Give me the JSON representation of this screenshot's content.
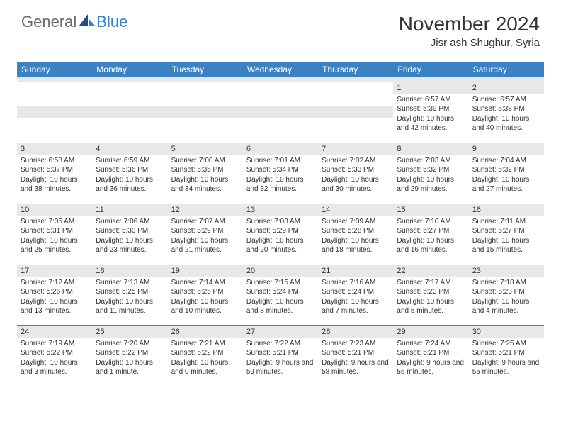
{
  "logo": {
    "textGeneral": "General",
    "textBlue": "Blue"
  },
  "title": "November 2024",
  "location": "Jisr ash Shughur, Syria",
  "dayHeaders": [
    "Sunday",
    "Monday",
    "Tuesday",
    "Wednesday",
    "Thursday",
    "Friday",
    "Saturday"
  ],
  "colors": {
    "headerBg": "#3b82c4",
    "spacerBg": "#e8e8e8",
    "dayNumBg": "#e8e8e8",
    "text": "#333333",
    "logoGray": "#6b6b6b",
    "logoBlue": "#3b82c4",
    "border": "#3b82c4",
    "background": "#ffffff"
  },
  "weeks": [
    [
      {
        "n": "",
        "sunrise": "",
        "sunset": "",
        "daylight": ""
      },
      {
        "n": "",
        "sunrise": "",
        "sunset": "",
        "daylight": ""
      },
      {
        "n": "",
        "sunrise": "",
        "sunset": "",
        "daylight": ""
      },
      {
        "n": "",
        "sunrise": "",
        "sunset": "",
        "daylight": ""
      },
      {
        "n": "",
        "sunrise": "",
        "sunset": "",
        "daylight": ""
      },
      {
        "n": "1",
        "sunrise": "Sunrise: 6:57 AM",
        "sunset": "Sunset: 5:39 PM",
        "daylight": "Daylight: 10 hours and 42 minutes."
      },
      {
        "n": "2",
        "sunrise": "Sunrise: 6:57 AM",
        "sunset": "Sunset: 5:38 PM",
        "daylight": "Daylight: 10 hours and 40 minutes."
      }
    ],
    [
      {
        "n": "3",
        "sunrise": "Sunrise: 6:58 AM",
        "sunset": "Sunset: 5:37 PM",
        "daylight": "Daylight: 10 hours and 38 minutes."
      },
      {
        "n": "4",
        "sunrise": "Sunrise: 6:59 AM",
        "sunset": "Sunset: 5:36 PM",
        "daylight": "Daylight: 10 hours and 36 minutes."
      },
      {
        "n": "5",
        "sunrise": "Sunrise: 7:00 AM",
        "sunset": "Sunset: 5:35 PM",
        "daylight": "Daylight: 10 hours and 34 minutes."
      },
      {
        "n": "6",
        "sunrise": "Sunrise: 7:01 AM",
        "sunset": "Sunset: 5:34 PM",
        "daylight": "Daylight: 10 hours and 32 minutes."
      },
      {
        "n": "7",
        "sunrise": "Sunrise: 7:02 AM",
        "sunset": "Sunset: 5:33 PM",
        "daylight": "Daylight: 10 hours and 30 minutes."
      },
      {
        "n": "8",
        "sunrise": "Sunrise: 7:03 AM",
        "sunset": "Sunset: 5:32 PM",
        "daylight": "Daylight: 10 hours and 29 minutes."
      },
      {
        "n": "9",
        "sunrise": "Sunrise: 7:04 AM",
        "sunset": "Sunset: 5:32 PM",
        "daylight": "Daylight: 10 hours and 27 minutes."
      }
    ],
    [
      {
        "n": "10",
        "sunrise": "Sunrise: 7:05 AM",
        "sunset": "Sunset: 5:31 PM",
        "daylight": "Daylight: 10 hours and 25 minutes."
      },
      {
        "n": "11",
        "sunrise": "Sunrise: 7:06 AM",
        "sunset": "Sunset: 5:30 PM",
        "daylight": "Daylight: 10 hours and 23 minutes."
      },
      {
        "n": "12",
        "sunrise": "Sunrise: 7:07 AM",
        "sunset": "Sunset: 5:29 PM",
        "daylight": "Daylight: 10 hours and 21 minutes."
      },
      {
        "n": "13",
        "sunrise": "Sunrise: 7:08 AM",
        "sunset": "Sunset: 5:29 PM",
        "daylight": "Daylight: 10 hours and 20 minutes."
      },
      {
        "n": "14",
        "sunrise": "Sunrise: 7:09 AM",
        "sunset": "Sunset: 5:28 PM",
        "daylight": "Daylight: 10 hours and 18 minutes."
      },
      {
        "n": "15",
        "sunrise": "Sunrise: 7:10 AM",
        "sunset": "Sunset: 5:27 PM",
        "daylight": "Daylight: 10 hours and 16 minutes."
      },
      {
        "n": "16",
        "sunrise": "Sunrise: 7:11 AM",
        "sunset": "Sunset: 5:27 PM",
        "daylight": "Daylight: 10 hours and 15 minutes."
      }
    ],
    [
      {
        "n": "17",
        "sunrise": "Sunrise: 7:12 AM",
        "sunset": "Sunset: 5:26 PM",
        "daylight": "Daylight: 10 hours and 13 minutes."
      },
      {
        "n": "18",
        "sunrise": "Sunrise: 7:13 AM",
        "sunset": "Sunset: 5:25 PM",
        "daylight": "Daylight: 10 hours and 11 minutes."
      },
      {
        "n": "19",
        "sunrise": "Sunrise: 7:14 AM",
        "sunset": "Sunset: 5:25 PM",
        "daylight": "Daylight: 10 hours and 10 minutes."
      },
      {
        "n": "20",
        "sunrise": "Sunrise: 7:15 AM",
        "sunset": "Sunset: 5:24 PM",
        "daylight": "Daylight: 10 hours and 8 minutes."
      },
      {
        "n": "21",
        "sunrise": "Sunrise: 7:16 AM",
        "sunset": "Sunset: 5:24 PM",
        "daylight": "Daylight: 10 hours and 7 minutes."
      },
      {
        "n": "22",
        "sunrise": "Sunrise: 7:17 AM",
        "sunset": "Sunset: 5:23 PM",
        "daylight": "Daylight: 10 hours and 5 minutes."
      },
      {
        "n": "23",
        "sunrise": "Sunrise: 7:18 AM",
        "sunset": "Sunset: 5:23 PM",
        "daylight": "Daylight: 10 hours and 4 minutes."
      }
    ],
    [
      {
        "n": "24",
        "sunrise": "Sunrise: 7:19 AM",
        "sunset": "Sunset: 5:22 PM",
        "daylight": "Daylight: 10 hours and 3 minutes."
      },
      {
        "n": "25",
        "sunrise": "Sunrise: 7:20 AM",
        "sunset": "Sunset: 5:22 PM",
        "daylight": "Daylight: 10 hours and 1 minute."
      },
      {
        "n": "26",
        "sunrise": "Sunrise: 7:21 AM",
        "sunset": "Sunset: 5:22 PM",
        "daylight": "Daylight: 10 hours and 0 minutes."
      },
      {
        "n": "27",
        "sunrise": "Sunrise: 7:22 AM",
        "sunset": "Sunset: 5:21 PM",
        "daylight": "Daylight: 9 hours and 59 minutes."
      },
      {
        "n": "28",
        "sunrise": "Sunrise: 7:23 AM",
        "sunset": "Sunset: 5:21 PM",
        "daylight": "Daylight: 9 hours and 58 minutes."
      },
      {
        "n": "29",
        "sunrise": "Sunrise: 7:24 AM",
        "sunset": "Sunset: 5:21 PM",
        "daylight": "Daylight: 9 hours and 56 minutes."
      },
      {
        "n": "30",
        "sunrise": "Sunrise: 7:25 AM",
        "sunset": "Sunset: 5:21 PM",
        "daylight": "Daylight: 9 hours and 55 minutes."
      }
    ]
  ]
}
